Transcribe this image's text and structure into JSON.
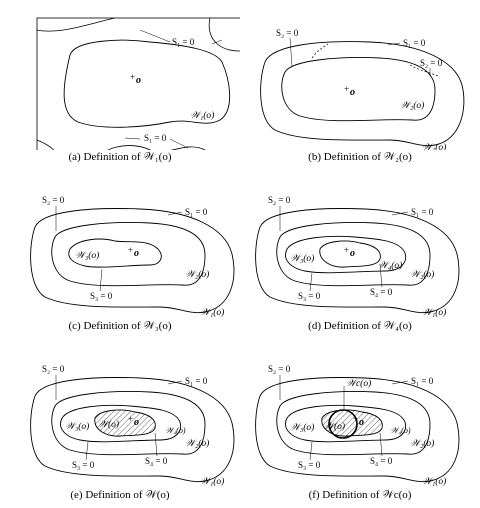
{
  "labels": {
    "s1": "S₁ = 0",
    "s2": "S₂ = 0",
    "s3": "S₃ = 0",
    "s4": "S₄ = 0",
    "w1": "𝒲₁(o)",
    "w2": "𝒲₂(o)",
    "w3": "𝒲₃(o)",
    "w4": "𝒲₄(o)",
    "w": "𝒲(o)",
    "wc": "𝒲c(o)",
    "origin": "o",
    "plus": "+"
  },
  "captions": {
    "a": "(a) Definition of 𝒲₁(o)",
    "b": "(b) Definition of 𝒲₂(o)",
    "c": "(c) Definition of 𝒲₃(o)",
    "d": "(d) Definition of 𝒲₄(o)",
    "e": "(e) Definition of 𝒲(o)",
    "f": "(f) Definition of 𝒲c(o)"
  }
}
